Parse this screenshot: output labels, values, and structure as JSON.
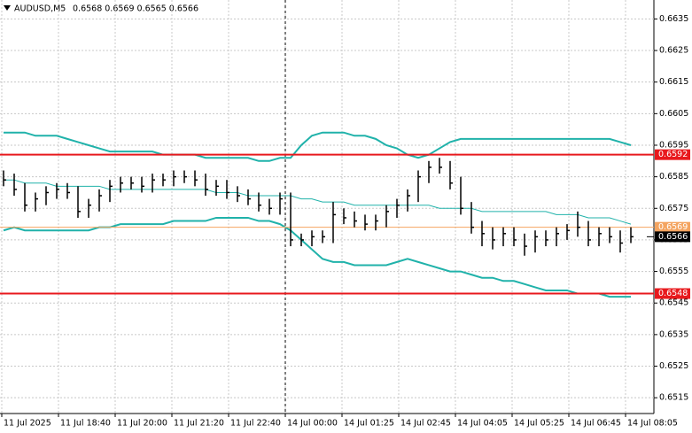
{
  "chart_data": {
    "type": "hlc",
    "title": "AUDUSD,M5",
    "header_prices": "0.6568 0.6569 0.6565 0.6566",
    "x_labels": [
      "11 Jul 2025",
      "11 Jul 18:40",
      "11 Jul 20:00",
      "11 Jul 21:20",
      "11 Jul 22:40",
      "14 Jul 00:00",
      "14 Jul 01:25",
      "14 Jul 02:45",
      "14 Jul 04:05",
      "14 Jul 05:25",
      "14 Jul 06:45",
      "14 Jul 08:05"
    ],
    "session_break_label": 5,
    "high": [
      0.6587,
      0.6586,
      0.6583,
      0.658,
      0.6582,
      0.6583,
      0.6583,
      0.6582,
      0.6578,
      0.6581,
      0.6584,
      0.6585,
      0.6585,
      0.6585,
      0.6586,
      0.6586,
      0.6587,
      0.6587,
      0.6587,
      0.6586,
      0.6584,
      0.6584,
      0.6582,
      0.6581,
      0.658,
      0.6578,
      0.658,
      0.658,
      0.6567,
      0.6568,
      0.6568,
      0.6577,
      0.6575,
      0.6574,
      0.6573,
      0.6573,
      0.6576,
      0.6578,
      0.6581,
      0.6587,
      0.659,
      0.6591,
      0.659,
      0.6585,
      0.6577,
      0.6571,
      0.6569,
      0.6569,
      0.6569,
      0.6567,
      0.6568,
      0.6568,
      0.6569,
      0.657,
      0.6574,
      0.6571,
      0.6569,
      0.6569,
      0.6568,
      0.6569
    ],
    "low": [
      0.6582,
      0.6579,
      0.6574,
      0.6574,
      0.6576,
      0.6578,
      0.6578,
      0.6572,
      0.6572,
      0.6574,
      0.6577,
      0.658,
      0.6581,
      0.658,
      0.658,
      0.6582,
      0.6582,
      0.6583,
      0.6582,
      0.6579,
      0.6579,
      0.6578,
      0.6577,
      0.6576,
      0.6574,
      0.6573,
      0.6573,
      0.6563,
      0.6563,
      0.6563,
      0.6564,
      0.6564,
      0.657,
      0.6569,
      0.6568,
      0.6568,
      0.6569,
      0.6572,
      0.6574,
      0.6577,
      0.6583,
      0.6586,
      0.6581,
      0.6573,
      0.6567,
      0.6563,
      0.6562,
      0.6563,
      0.6563,
      0.656,
      0.6561,
      0.6563,
      0.6563,
      0.6565,
      0.6566,
      0.6563,
      0.6563,
      0.6564,
      0.6561,
      0.6564
    ],
    "close": [
      0.6584,
      0.6581,
      0.6576,
      0.6578,
      0.658,
      0.6581,
      0.658,
      0.6574,
      0.6576,
      0.6579,
      0.6582,
      0.6583,
      0.6583,
      0.6582,
      0.6584,
      0.6584,
      0.6585,
      0.6585,
      0.6584,
      0.6581,
      0.6582,
      0.658,
      0.6579,
      0.6578,
      0.6576,
      0.6575,
      0.6578,
      0.6565,
      0.6565,
      0.6566,
      0.6566,
      0.6573,
      0.6572,
      0.6571,
      0.657,
      0.6571,
      0.6574,
      0.6576,
      0.6579,
      0.6585,
      0.6588,
      0.6588,
      0.6583,
      0.6575,
      0.6569,
      0.6567,
      0.6565,
      0.6567,
      0.6565,
      0.6563,
      0.6566,
      0.6565,
      0.6567,
      0.6568,
      0.6569,
      0.6565,
      0.6567,
      0.6566,
      0.6564,
      0.6566
    ],
    "bar_color": "#000000",
    "band_color": "#20b2aa",
    "upper": [
      0.6599,
      0.6599,
      0.6599,
      0.6598,
      0.6598,
      0.6598,
      0.6597,
      0.6596,
      0.6595,
      0.6594,
      0.6593,
      0.6593,
      0.6593,
      0.6593,
      0.6593,
      0.6592,
      0.6592,
      0.6592,
      0.6592,
      0.6591,
      0.6591,
      0.6591,
      0.6591,
      0.6591,
      0.659,
      0.659,
      0.6591,
      0.6591,
      0.6595,
      0.6598,
      0.6599,
      0.6599,
      0.6599,
      0.6598,
      0.6598,
      0.6597,
      0.6595,
      0.6594,
      0.6592,
      0.6591,
      0.6592,
      0.6594,
      0.6596,
      0.6597,
      0.6597,
      0.6597,
      0.6597,
      0.6597,
      0.6597,
      0.6597,
      0.6597,
      0.6597,
      0.6597,
      0.6597,
      0.6597,
      0.6597,
      0.6597,
      0.6597,
      0.6596,
      0.6595
    ],
    "middle": [
      0.6584,
      0.6584,
      0.6583,
      0.6583,
      0.6583,
      0.6582,
      0.6582,
      0.6582,
      0.6582,
      0.6582,
      0.6581,
      0.6581,
      0.6581,
      0.6581,
      0.6581,
      0.6581,
      0.6581,
      0.6581,
      0.6581,
      0.6581,
      0.658,
      0.658,
      0.658,
      0.6579,
      0.6579,
      0.6579,
      0.6579,
      0.6579,
      0.6578,
      0.6578,
      0.6577,
      0.6577,
      0.6577,
      0.6576,
      0.6576,
      0.6576,
      0.6576,
      0.6576,
      0.6576,
      0.6576,
      0.6576,
      0.6575,
      0.6575,
      0.6575,
      0.6575,
      0.6574,
      0.6574,
      0.6574,
      0.6574,
      0.6574,
      0.6574,
      0.6574,
      0.6573,
      0.6573,
      0.6573,
      0.6572,
      0.6572,
      0.6572,
      0.6571,
      0.657
    ],
    "lower": [
      0.6568,
      0.6569,
      0.6568,
      0.6568,
      0.6568,
      0.6568,
      0.6568,
      0.6568,
      0.6568,
      0.6569,
      0.6569,
      0.657,
      0.657,
      0.657,
      0.657,
      0.657,
      0.6571,
      0.6571,
      0.6571,
      0.6571,
      0.6572,
      0.6572,
      0.6572,
      0.6572,
      0.6571,
      0.6571,
      0.657,
      0.6568,
      0.6565,
      0.6562,
      0.6559,
      0.6558,
      0.6558,
      0.6557,
      0.6557,
      0.6557,
      0.6557,
      0.6558,
      0.6559,
      0.6558,
      0.6557,
      0.6556,
      0.6555,
      0.6555,
      0.6554,
      0.6553,
      0.6553,
      0.6552,
      0.6552,
      0.6551,
      0.655,
      0.6549,
      0.6549,
      0.6549,
      0.6548,
      0.6548,
      0.6548,
      0.6547,
      0.6547,
      0.6547
    ],
    "levels": [
      {
        "value": 0.6592,
        "color": "#e8191d"
      },
      {
        "value": 0.6548,
        "color": "#e8191d"
      },
      {
        "value": 0.6569,
        "color": "#f4a460"
      }
    ],
    "last_price": 0.6566,
    "ylim": [
      0.651,
      0.6641
    ],
    "yticks": [
      0.6515,
      0.6525,
      0.6535,
      0.6545,
      0.6555,
      0.6565,
      0.6575,
      0.6585,
      0.6595,
      0.6605,
      0.6615,
      0.6625,
      0.6635
    ],
    "grid": true
  }
}
